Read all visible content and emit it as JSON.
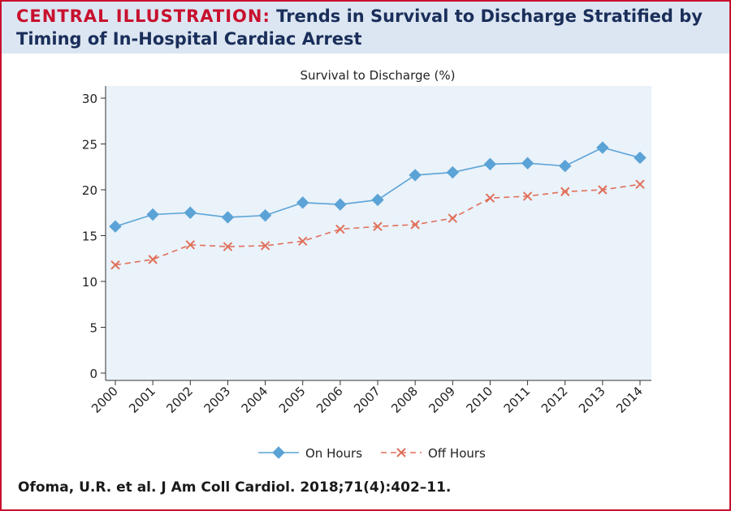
{
  "header": {
    "label": "CENTRAL ILLUSTRATION:",
    "title_line1": "Trends in Survival to Discharge Stratified by",
    "title_line2": "Timing of In-Hospital Cardiac Arrest"
  },
  "citation": "Ofoma, U.R. et al. J Am Coll Cardiol. 2018;71(4):402–11.",
  "colors": {
    "accent": "#c8102e",
    "header_bg": "#dce6f2",
    "plot_bg": "#eaf2fa",
    "on_hours": "#5ba3d6",
    "off_hours": "#e0705a"
  },
  "chart_data": {
    "type": "line",
    "title": "Survival to Discharge (%)",
    "xlabel": "",
    "ylabel": "",
    "categories": [
      "2000",
      "2001",
      "2002",
      "2003",
      "2004",
      "2005",
      "2006",
      "2007",
      "2008",
      "2009",
      "2010",
      "2011",
      "2012",
      "2013",
      "2014"
    ],
    "ylim": [
      0,
      30
    ],
    "yticks": [
      0,
      5,
      10,
      15,
      20,
      25,
      30
    ],
    "grid": false,
    "legend": "bottom",
    "series": [
      {
        "name": "On Hours",
        "marker": "diamond",
        "line": "solid",
        "color": "#5ba3d6",
        "values": [
          16.0,
          17.3,
          17.5,
          17.0,
          17.2,
          18.6,
          18.4,
          18.9,
          21.6,
          21.9,
          22.8,
          22.9,
          22.6,
          24.6,
          23.5
        ]
      },
      {
        "name": "Off Hours",
        "marker": "x",
        "line": "dashed",
        "color": "#e0705a",
        "values": [
          11.8,
          12.4,
          14.0,
          13.8,
          13.9,
          14.4,
          15.7,
          16.0,
          16.2,
          16.9,
          19.1,
          19.3,
          19.8,
          20.0,
          20.6
        ]
      }
    ]
  }
}
